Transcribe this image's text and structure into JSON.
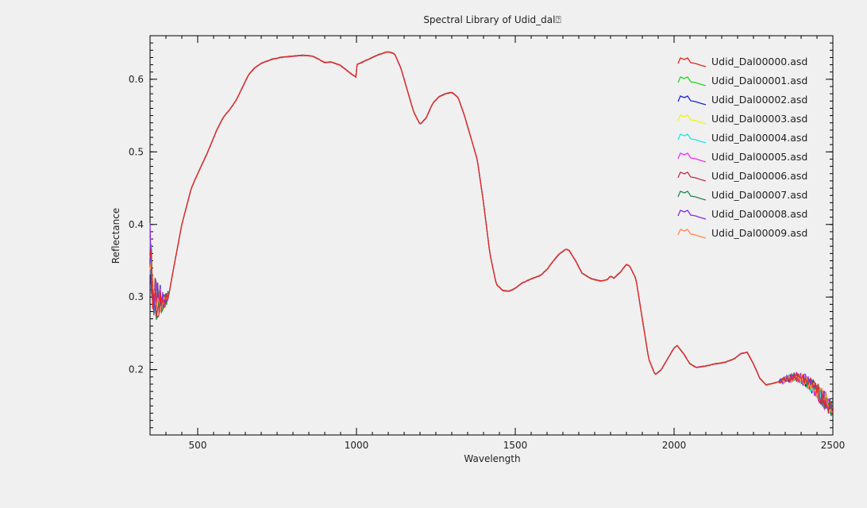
{
  "chart_data": {
    "type": "line",
    "title": "Spectral Library of Udid_dal⍰",
    "xlabel": "Wavelength",
    "ylabel": "Reflectance",
    "xlim": [
      350,
      2500
    ],
    "ylim": [
      0.11,
      0.66
    ],
    "xticks": [
      500,
      1000,
      1500,
      2000,
      2500
    ],
    "yticks": [
      0.2,
      0.3,
      0.4,
      0.5,
      0.6
    ],
    "grid": false,
    "legend_position": "top-right",
    "base_curve": {
      "x": [
        350,
        360,
        370,
        380,
        390,
        400,
        410,
        420,
        450,
        480,
        500,
        530,
        560,
        580,
        600,
        620,
        640,
        660,
        680,
        700,
        730,
        760,
        800,
        830,
        860,
        880,
        900,
        920,
        950,
        970,
        985,
        995,
        999,
        1001,
        1010,
        1040,
        1070,
        1100,
        1120,
        1140,
        1160,
        1180,
        1200,
        1220,
        1240,
        1260,
        1280,
        1300,
        1320,
        1340,
        1360,
        1380,
        1400,
        1420,
        1440,
        1460,
        1480,
        1500,
        1520,
        1550,
        1580,
        1600,
        1620,
        1640,
        1660,
        1670,
        1690,
        1710,
        1740,
        1770,
        1790,
        1800,
        1810,
        1830,
        1850,
        1860,
        1880,
        1900,
        1920,
        1940,
        1960,
        1980,
        2000,
        2010,
        2030,
        2050,
        2070,
        2100,
        2130,
        2160,
        2190,
        2210,
        2230,
        2250,
        2270,
        2290,
        2320,
        2350,
        2380,
        2400,
        2420,
        2440,
        2460,
        2480,
        2500
      ],
      "y": [
        0.37,
        0.3,
        0.296,
        0.297,
        0.295,
        0.296,
        0.305,
        0.33,
        0.4,
        0.45,
        0.47,
        0.498,
        0.53,
        0.547,
        0.558,
        0.57,
        0.588,
        0.606,
        0.616,
        0.622,
        0.627,
        0.63,
        0.632,
        0.633,
        0.632,
        0.628,
        0.623,
        0.624,
        0.619,
        0.612,
        0.607,
        0.604,
        0.603,
        0.62,
        0.622,
        0.628,
        0.634,
        0.638,
        0.635,
        0.615,
        0.585,
        0.555,
        0.538,
        0.547,
        0.567,
        0.576,
        0.58,
        0.582,
        0.575,
        0.55,
        0.52,
        0.49,
        0.43,
        0.36,
        0.318,
        0.309,
        0.308,
        0.312,
        0.319,
        0.325,
        0.33,
        0.338,
        0.35,
        0.36,
        0.366,
        0.364,
        0.35,
        0.333,
        0.325,
        0.322,
        0.324,
        0.329,
        0.326,
        0.334,
        0.345,
        0.343,
        0.325,
        0.27,
        0.215,
        0.193,
        0.2,
        0.215,
        0.23,
        0.233,
        0.222,
        0.208,
        0.203,
        0.205,
        0.208,
        0.21,
        0.215,
        0.222,
        0.224,
        0.208,
        0.188,
        0.179,
        0.182,
        0.186,
        0.19,
        0.188,
        0.183,
        0.175,
        0.165,
        0.155,
        0.145
      ]
    },
    "series": [
      {
        "name": "Udid_Dal00000.asd",
        "color": "#e32626"
      },
      {
        "name": "Udid_Dal00001.asd",
        "color": "#22d622"
      },
      {
        "name": "Udid_Dal00002.asd",
        "color": "#1f26d9"
      },
      {
        "name": "Udid_Dal00003.asd",
        "color": "#f2f217"
      },
      {
        "name": "Udid_Dal00004.asd",
        "color": "#1fe7e7"
      },
      {
        "name": "Udid_Dal00005.asd",
        "color": "#f02ef0"
      },
      {
        "name": "Udid_Dal00006.asd",
        "color": "#c0304e"
      },
      {
        "name": "Udid_Dal00007.asd",
        "color": "#208a50"
      },
      {
        "name": "Udid_Dal00008.asd",
        "color": "#8a2be2"
      },
      {
        "name": "Udid_Dal00009.asd",
        "color": "#ff8a4a"
      }
    ]
  }
}
